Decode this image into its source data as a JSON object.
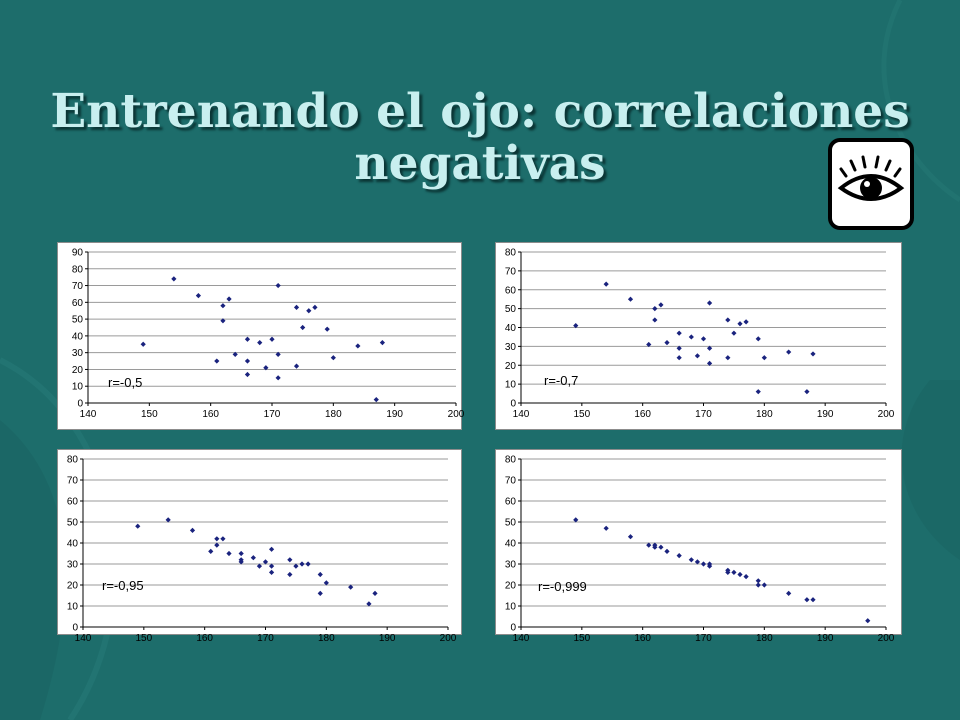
{
  "slide": {
    "title_line1": "Entrenando el ojo: correlaciones",
    "title_line2": "negativas",
    "icon": "eye-icon",
    "colors": {
      "background": "#1d6d6b",
      "title": "#c8efef",
      "points": "#1a237e"
    }
  },
  "chart_data": [
    {
      "type": "scatter",
      "annotation": "r=-0,5",
      "xlim": [
        140,
        200
      ],
      "xticks": [
        140,
        150,
        160,
        170,
        180,
        190,
        200
      ],
      "ylim": [
        0,
        90
      ],
      "yticks": [
        0,
        10,
        20,
        30,
        40,
        50,
        60,
        70,
        80,
        90
      ],
      "grid": "horizontal",
      "x": [
        149,
        154,
        158,
        161,
        162,
        162,
        163,
        164,
        166,
        166,
        166,
        168,
        169,
        170,
        171,
        171,
        171,
        174,
        174,
        175,
        176,
        177,
        179,
        180,
        184,
        187,
        188
      ],
      "y": [
        35,
        74,
        64,
        25,
        58,
        49,
        62,
        29,
        38,
        25,
        17,
        36,
        21,
        38,
        70,
        29,
        15,
        57,
        22,
        45,
        55,
        57,
        44,
        27,
        34,
        2,
        36
      ]
    },
    {
      "type": "scatter",
      "annotation": "r=-0,7",
      "xlim": [
        140,
        200
      ],
      "xticks": [
        140,
        150,
        160,
        170,
        180,
        190,
        200
      ],
      "ylim": [
        0,
        80
      ],
      "yticks": [
        0,
        10,
        20,
        30,
        40,
        50,
        60,
        70,
        80
      ],
      "grid": "horizontal",
      "x": [
        149,
        154,
        158,
        161,
        162,
        162,
        163,
        164,
        166,
        166,
        166,
        168,
        169,
        170,
        171,
        171,
        171,
        174,
        174,
        175,
        176,
        177,
        179,
        179,
        180,
        184,
        187,
        188
      ],
      "y": [
        41,
        63,
        55,
        31,
        50,
        44,
        52,
        32,
        37,
        29,
        24,
        35,
        25,
        34,
        53,
        29,
        21,
        44,
        24,
        37,
        42,
        43,
        34,
        6,
        24,
        27,
        6,
        26
      ]
    },
    {
      "type": "scatter",
      "annotation": "r=-0,95",
      "xlim": [
        140,
        200
      ],
      "xticks": [
        140,
        150,
        160,
        170,
        180,
        190,
        200
      ],
      "ylim": [
        0,
        80
      ],
      "yticks": [
        0,
        10,
        20,
        30,
        40,
        50,
        60,
        70,
        80
      ],
      "grid": "horizontal",
      "x": [
        149,
        154,
        158,
        161,
        162,
        162,
        163,
        164,
        166,
        166,
        166,
        168,
        169,
        170,
        171,
        171,
        171,
        174,
        174,
        175,
        176,
        177,
        179,
        179,
        180,
        184,
        187,
        188
      ],
      "y": [
        48,
        51,
        46,
        36,
        42,
        39,
        42,
        35,
        35,
        32,
        31,
        33,
        29,
        31,
        37,
        29,
        26,
        32,
        25,
        29,
        30,
        30,
        25,
        16,
        21,
        19,
        11,
        16
      ]
    },
    {
      "type": "scatter",
      "annotation": "r=-0,999",
      "xlim": [
        140,
        200
      ],
      "xticks": [
        140,
        150,
        160,
        170,
        180,
        190,
        200
      ],
      "ylim": [
        0,
        80
      ],
      "yticks": [
        0,
        10,
        20,
        30,
        40,
        50,
        60,
        70,
        80
      ],
      "grid": "horizontal",
      "x": [
        149,
        154,
        158,
        161,
        162,
        162,
        163,
        164,
        166,
        168,
        169,
        170,
        171,
        171,
        174,
        174,
        175,
        176,
        177,
        179,
        179,
        180,
        184,
        187,
        188,
        197
      ],
      "y": [
        51,
        47,
        43,
        39,
        39,
        38,
        38,
        36,
        34,
        32,
        31,
        30,
        30,
        29,
        27,
        26,
        26,
        25,
        24,
        22,
        20,
        20,
        16,
        13,
        13,
        3
      ]
    }
  ]
}
